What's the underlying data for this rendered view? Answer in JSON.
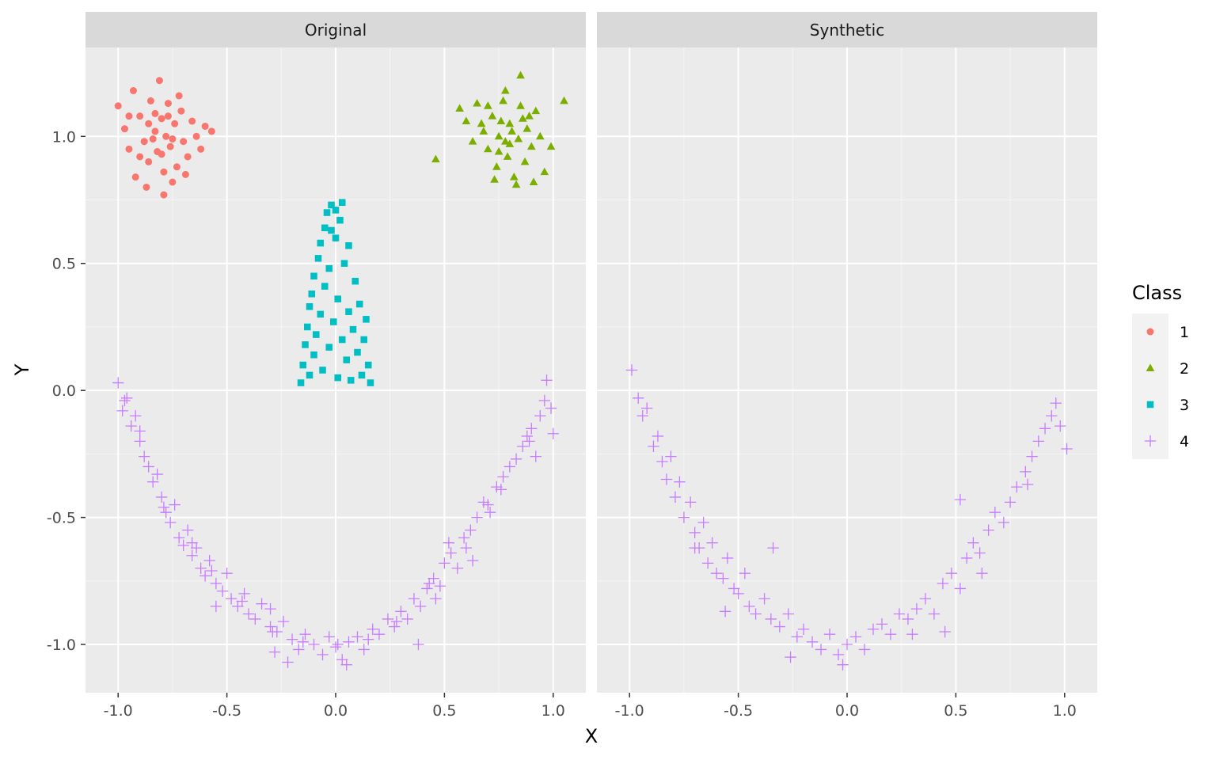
{
  "chart_data": {
    "type": "scatter",
    "facets": [
      "Original",
      "Synthetic"
    ],
    "xlabel": "X",
    "ylabel": "Y",
    "xlim": [
      -1.15,
      1.15
    ],
    "ylim": [
      -1.19,
      1.35
    ],
    "x_ticks": [
      -1.0,
      -0.5,
      0.0,
      0.5,
      1.0
    ],
    "x_tick_labels": [
      "-1.0",
      "-0.5",
      "0.0",
      "0.5",
      "1.0"
    ],
    "y_ticks": [
      -1.0,
      -0.5,
      0.0,
      0.5,
      1.0
    ],
    "y_tick_labels": [
      "-1.0",
      "-0.5",
      "0.0",
      "0.5",
      "1.0"
    ],
    "grid": true,
    "legend": {
      "title": "Class",
      "position": "right",
      "entries": [
        {
          "label": "1",
          "shape": "circle",
          "color": "#F8766D"
        },
        {
          "label": "2",
          "shape": "triangle",
          "color": "#7CAE00"
        },
        {
          "label": "3",
          "shape": "square",
          "color": "#00BFC4"
        },
        {
          "label": "4",
          "shape": "plus",
          "color": "#C77CFF"
        }
      ]
    },
    "series": [
      {
        "name": "1",
        "facet": "Original",
        "points": [
          [
            -1.0,
            1.12
          ],
          [
            -0.97,
            1.03
          ],
          [
            -0.95,
            0.95
          ],
          [
            -0.93,
            1.18
          ],
          [
            -0.9,
            1.08
          ],
          [
            -0.88,
            0.98
          ],
          [
            -0.86,
            0.9
          ],
          [
            -0.85,
            1.14
          ],
          [
            -0.83,
            1.02
          ],
          [
            -0.82,
            0.94
          ],
          [
            -0.8,
            1.07
          ],
          [
            -0.79,
            0.86
          ],
          [
            -0.78,
            1.0
          ],
          [
            -0.77,
            1.13
          ],
          [
            -0.76,
            0.96
          ],
          [
            -0.74,
            1.05
          ],
          [
            -0.73,
            0.88
          ],
          [
            -0.71,
            1.1
          ],
          [
            -0.7,
            0.98
          ],
          [
            -0.68,
            0.92
          ],
          [
            -0.66,
            1.06
          ],
          [
            -0.64,
            1.0
          ],
          [
            -0.62,
            0.95
          ],
          [
            -0.6,
            1.04
          ],
          [
            -0.57,
            1.02
          ],
          [
            -0.92,
            0.84
          ],
          [
            -0.87,
            0.8
          ],
          [
            -0.84,
            0.99
          ],
          [
            -0.81,
            1.22
          ],
          [
            -0.79,
            0.77
          ],
          [
            -0.75,
            0.82
          ],
          [
            -0.72,
            1.16
          ],
          [
            -0.69,
            0.85
          ],
          [
            -0.95,
            1.08
          ],
          [
            -0.9,
            0.92
          ],
          [
            -0.86,
            1.05
          ],
          [
            -0.8,
            0.93
          ],
          [
            -0.77,
            1.08
          ],
          [
            -0.75,
            0.99
          ],
          [
            -0.83,
            1.09
          ]
        ]
      },
      {
        "name": "2",
        "facet": "Original",
        "points": [
          [
            0.46,
            0.91
          ],
          [
            0.57,
            1.11
          ],
          [
            0.6,
            1.06
          ],
          [
            0.63,
            0.98
          ],
          [
            0.65,
            1.13
          ],
          [
            0.68,
            1.02
          ],
          [
            0.7,
            0.95
          ],
          [
            0.72,
            1.08
          ],
          [
            0.74,
            0.88
          ],
          [
            0.75,
            1.0
          ],
          [
            0.77,
            1.14
          ],
          [
            0.79,
            0.92
          ],
          [
            0.8,
            1.05
          ],
          [
            0.82,
            0.84
          ],
          [
            0.84,
            0.99
          ],
          [
            0.85,
            1.12
          ],
          [
            0.87,
            0.9
          ],
          [
            0.88,
            1.03
          ],
          [
            0.9,
            0.96
          ],
          [
            0.92,
            1.1
          ],
          [
            0.94,
            1.0
          ],
          [
            0.96,
            0.86
          ],
          [
            0.99,
            0.96
          ],
          [
            1.05,
            1.14
          ],
          [
            0.85,
            1.24
          ],
          [
            0.78,
            1.18
          ],
          [
            0.83,
            0.81
          ],
          [
            0.73,
            0.83
          ],
          [
            0.76,
            1.06
          ],
          [
            0.8,
            0.97
          ],
          [
            0.86,
            1.07
          ],
          [
            0.81,
            1.02
          ],
          [
            0.7,
            1.12
          ],
          [
            0.91,
            0.82
          ],
          [
            0.67,
            1.05
          ],
          [
            0.78,
            0.98
          ],
          [
            0.89,
            1.08
          ],
          [
            0.75,
            0.94
          ]
        ]
      },
      {
        "name": "3",
        "facet": "Original",
        "points": [
          [
            -0.16,
            0.03
          ],
          [
            -0.15,
            0.1
          ],
          [
            -0.14,
            0.18
          ],
          [
            -0.13,
            0.25
          ],
          [
            -0.12,
            0.06
          ],
          [
            -0.12,
            0.33
          ],
          [
            -0.11,
            0.38
          ],
          [
            -0.1,
            0.14
          ],
          [
            -0.1,
            0.45
          ],
          [
            -0.09,
            0.22
          ],
          [
            -0.08,
            0.52
          ],
          [
            -0.07,
            0.3
          ],
          [
            -0.07,
            0.58
          ],
          [
            -0.06,
            0.08
          ],
          [
            -0.05,
            0.41
          ],
          [
            -0.05,
            0.64
          ],
          [
            -0.04,
            0.7
          ],
          [
            -0.03,
            0.17
          ],
          [
            -0.03,
            0.48
          ],
          [
            -0.02,
            0.73
          ],
          [
            -0.01,
            0.27
          ],
          [
            0.0,
            0.6
          ],
          [
            0.01,
            0.05
          ],
          [
            0.01,
            0.36
          ],
          [
            0.02,
            0.67
          ],
          [
            0.03,
            0.2
          ],
          [
            0.03,
            0.74
          ],
          [
            0.04,
            0.5
          ],
          [
            0.05,
            0.12
          ],
          [
            0.06,
            0.31
          ],
          [
            0.06,
            0.57
          ],
          [
            0.07,
            0.04
          ],
          [
            0.08,
            0.24
          ],
          [
            0.09,
            0.43
          ],
          [
            0.1,
            0.15
          ],
          [
            0.11,
            0.34
          ],
          [
            0.12,
            0.06
          ],
          [
            0.13,
            0.2
          ],
          [
            0.14,
            0.28
          ],
          [
            0.15,
            0.1
          ],
          [
            0.16,
            0.03
          ],
          [
            -0.02,
            0.63
          ],
          [
            0.0,
            0.71
          ]
        ]
      },
      {
        "name": "4",
        "facet": "Original",
        "points": [
          [
            -1.0,
            0.03
          ],
          [
            -0.98,
            -0.08
          ],
          [
            -0.96,
            -0.03
          ],
          [
            -0.94,
            -0.14
          ],
          [
            -0.92,
            -0.1
          ],
          [
            -0.9,
            -0.2
          ],
          [
            -0.88,
            -0.26
          ],
          [
            -0.86,
            -0.3
          ],
          [
            -0.84,
            -0.36
          ],
          [
            -0.82,
            -0.33
          ],
          [
            -0.8,
            -0.42
          ],
          [
            -0.78,
            -0.48
          ],
          [
            -0.76,
            -0.52
          ],
          [
            -0.74,
            -0.45
          ],
          [
            -0.72,
            -0.58
          ],
          [
            -0.7,
            -0.61
          ],
          [
            -0.68,
            -0.55
          ],
          [
            -0.66,
            -0.65
          ],
          [
            -0.64,
            -0.62
          ],
          [
            -0.62,
            -0.7
          ],
          [
            -0.6,
            -0.73
          ],
          [
            -0.58,
            -0.67
          ],
          [
            -0.55,
            -0.76
          ],
          [
            -0.52,
            -0.79
          ],
          [
            -0.5,
            -0.72
          ],
          [
            -0.48,
            -0.82
          ],
          [
            -0.45,
            -0.85
          ],
          [
            -0.42,
            -0.8
          ],
          [
            -0.4,
            -0.88
          ],
          [
            -0.37,
            -0.9
          ],
          [
            -0.34,
            -0.84
          ],
          [
            -0.3,
            -0.93
          ],
          [
            -0.27,
            -0.95
          ],
          [
            -0.24,
            -0.91
          ],
          [
            -0.2,
            -0.98
          ],
          [
            -0.17,
            -1.02
          ],
          [
            -0.14,
            -0.96
          ],
          [
            -0.1,
            -1.0
          ],
          [
            -0.06,
            -1.04
          ],
          [
            -0.03,
            -0.97
          ],
          [
            0.0,
            -1.01
          ],
          [
            0.03,
            -1.06
          ],
          [
            0.06,
            -0.99
          ],
          [
            0.1,
            -0.97
          ],
          [
            0.13,
            -1.02
          ],
          [
            0.17,
            -0.94
          ],
          [
            0.2,
            -0.96
          ],
          [
            0.24,
            -0.9
          ],
          [
            0.27,
            -0.93
          ],
          [
            0.3,
            -0.87
          ],
          [
            0.33,
            -0.9
          ],
          [
            0.36,
            -0.82
          ],
          [
            0.39,
            -0.85
          ],
          [
            0.42,
            -0.78
          ],
          [
            0.45,
            -0.74
          ],
          [
            0.48,
            -0.77
          ],
          [
            0.5,
            -0.68
          ],
          [
            0.53,
            -0.64
          ],
          [
            0.56,
            -0.7
          ],
          [
            0.59,
            -0.58
          ],
          [
            0.62,
            -0.55
          ],
          [
            0.65,
            -0.5
          ],
          [
            0.68,
            -0.44
          ],
          [
            0.71,
            -0.48
          ],
          [
            0.74,
            -0.38
          ],
          [
            0.77,
            -0.34
          ],
          [
            0.8,
            -0.3
          ],
          [
            0.83,
            -0.27
          ],
          [
            0.86,
            -0.22
          ],
          [
            0.88,
            -0.18
          ],
          [
            0.9,
            -0.15
          ],
          [
            0.92,
            -0.26
          ],
          [
            0.94,
            -0.1
          ],
          [
            0.96,
            -0.04
          ],
          [
            0.97,
            0.04
          ],
          [
            0.99,
            -0.07
          ],
          [
            1.0,
            -0.17
          ],
          [
            -0.97,
            -0.04
          ],
          [
            -0.9,
            -0.16
          ],
          [
            -0.79,
            -0.46
          ],
          [
            -0.66,
            -0.6
          ],
          [
            -0.57,
            -0.71
          ],
          [
            -0.43,
            -0.83
          ],
          [
            -0.29,
            -0.95
          ],
          [
            -0.15,
            -0.99
          ],
          [
            0.01,
            -1.0
          ],
          [
            0.15,
            -0.98
          ],
          [
            0.28,
            -0.91
          ],
          [
            0.43,
            -0.76
          ],
          [
            0.6,
            -0.62
          ],
          [
            0.76,
            -0.39
          ],
          [
            0.89,
            -0.2
          ],
          [
            -0.28,
            -1.03
          ],
          [
            -0.22,
            -1.07
          ],
          [
            0.05,
            -1.08
          ],
          [
            0.38,
            -1.0
          ],
          [
            -0.3,
            -0.86
          ],
          [
            0.52,
            -0.6
          ],
          [
            0.7,
            -0.45
          ],
          [
            0.46,
            -0.82
          ],
          [
            -0.55,
            -0.85
          ],
          [
            0.63,
            -0.67
          ]
        ]
      },
      {
        "name": "4",
        "facet": "Synthetic",
        "points": [
          [
            -0.99,
            0.08
          ],
          [
            -0.96,
            -0.03
          ],
          [
            -0.94,
            -0.1
          ],
          [
            -0.92,
            -0.07
          ],
          [
            -0.89,
            -0.22
          ],
          [
            -0.87,
            -0.18
          ],
          [
            -0.85,
            -0.28
          ],
          [
            -0.83,
            -0.35
          ],
          [
            -0.81,
            -0.26
          ],
          [
            -0.79,
            -0.42
          ],
          [
            -0.77,
            -0.36
          ],
          [
            -0.75,
            -0.5
          ],
          [
            -0.72,
            -0.44
          ],
          [
            -0.7,
            -0.56
          ],
          [
            -0.68,
            -0.62
          ],
          [
            -0.66,
            -0.52
          ],
          [
            -0.64,
            -0.68
          ],
          [
            -0.62,
            -0.6
          ],
          [
            -0.6,
            -0.72
          ],
          [
            -0.57,
            -0.74
          ],
          [
            -0.55,
            -0.66
          ],
          [
            -0.52,
            -0.78
          ],
          [
            -0.5,
            -0.8
          ],
          [
            -0.47,
            -0.72
          ],
          [
            -0.45,
            -0.85
          ],
          [
            -0.42,
            -0.88
          ],
          [
            -0.38,
            -0.82
          ],
          [
            -0.35,
            -0.9
          ],
          [
            -0.31,
            -0.93
          ],
          [
            -0.27,
            -0.88
          ],
          [
            -0.23,
            -0.97
          ],
          [
            -0.2,
            -0.94
          ],
          [
            -0.16,
            -0.99
          ],
          [
            -0.12,
            -1.02
          ],
          [
            -0.08,
            -0.96
          ],
          [
            -0.04,
            -1.04
          ],
          [
            0.0,
            -1.0
          ],
          [
            0.04,
            -0.97
          ],
          [
            0.08,
            -1.02
          ],
          [
            0.12,
            -0.94
          ],
          [
            0.16,
            -0.92
          ],
          [
            0.2,
            -0.96
          ],
          [
            0.24,
            -0.88
          ],
          [
            0.28,
            -0.9
          ],
          [
            0.32,
            -0.86
          ],
          [
            0.36,
            -0.82
          ],
          [
            0.4,
            -0.88
          ],
          [
            0.44,
            -0.76
          ],
          [
            0.48,
            -0.72
          ],
          [
            0.52,
            -0.78
          ],
          [
            0.55,
            -0.66
          ],
          [
            0.58,
            -0.6
          ],
          [
            0.61,
            -0.64
          ],
          [
            0.65,
            -0.55
          ],
          [
            0.68,
            -0.48
          ],
          [
            0.72,
            -0.52
          ],
          [
            0.75,
            -0.44
          ],
          [
            0.78,
            -0.38
          ],
          [
            0.82,
            -0.32
          ],
          [
            0.85,
            -0.26
          ],
          [
            0.88,
            -0.2
          ],
          [
            0.91,
            -0.15
          ],
          [
            0.94,
            -0.1
          ],
          [
            0.96,
            -0.05
          ],
          [
            0.98,
            -0.14
          ],
          [
            1.01,
            -0.23
          ],
          [
            0.52,
            -0.43
          ],
          [
            -0.34,
            -0.62
          ],
          [
            -0.56,
            -0.87
          ],
          [
            -0.7,
            -0.62
          ],
          [
            0.3,
            -0.96
          ],
          [
            0.45,
            -0.95
          ],
          [
            -0.02,
            -1.08
          ],
          [
            -0.26,
            -1.05
          ],
          [
            0.62,
            -0.72
          ],
          [
            0.83,
            -0.37
          ]
        ]
      }
    ]
  }
}
